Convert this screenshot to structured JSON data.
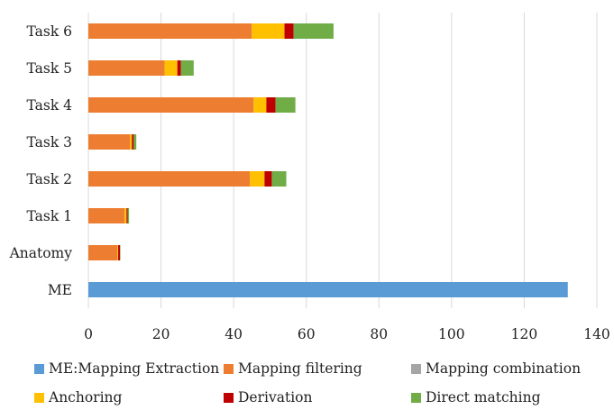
{
  "chart_data": {
    "type": "bar",
    "orientation": "horizontal",
    "stacked": true,
    "categories": [
      "ME",
      "Anatomy",
      "Task 1",
      "Task 2",
      "Task 3",
      "Task 4",
      "Task 5",
      "Task 6"
    ],
    "series": [
      {
        "name": "ME:Mapping Extraction",
        "color": "#5B9BD5",
        "values": [
          132,
          0,
          0,
          0,
          0,
          0,
          0,
          0
        ]
      },
      {
        "name": "Mapping filtering",
        "color": "#ED7D31",
        "values": [
          0,
          8,
          10,
          44.5,
          11.5,
          45.5,
          21,
          45
        ]
      },
      {
        "name": "Mapping combination",
        "color": "#A5A5A5",
        "values": [
          0,
          0,
          0,
          0,
          0,
          0,
          0,
          0
        ]
      },
      {
        "name": "Anchoring",
        "color": "#FFC000",
        "values": [
          0,
          0.2,
          0.5,
          4,
          0.5,
          3.5,
          3.5,
          9
        ]
      },
      {
        "name": "Derivation",
        "color": "#C00000",
        "values": [
          0,
          0.5,
          0.3,
          2,
          0.5,
          2.5,
          1,
          2.5
        ]
      },
      {
        "name": "Direct matching",
        "color": "#70AD47",
        "values": [
          0,
          0.1,
          0.4,
          4,
          0.7,
          5.5,
          3.5,
          11
        ]
      }
    ],
    "xlim": [
      0,
      140
    ],
    "xticks": [
      "0",
      "20",
      "40",
      "60",
      "80",
      "100",
      "120",
      "140"
    ],
    "grid": "vertical",
    "legend_position": "bottom"
  }
}
